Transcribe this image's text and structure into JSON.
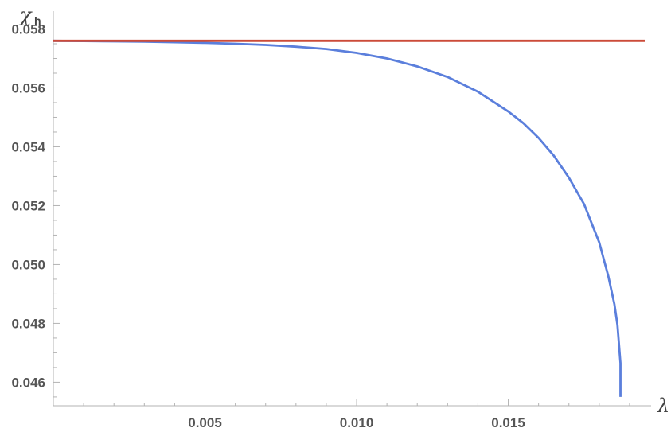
{
  "chart_data": {
    "type": "line",
    "xlabel": "λ",
    "ylabel": "χ",
    "ylabel_subscript": "h",
    "xlim": [
      0,
      0.0195
    ],
    "ylim": [
      0.0452,
      0.0585
    ],
    "x_ticks": [
      0.005,
      0.01,
      0.015
    ],
    "x_tick_labels": [
      "0.005",
      "0.010",
      "0.015"
    ],
    "y_ticks": [
      0.046,
      0.048,
      0.05,
      0.052,
      0.054,
      0.056,
      0.058
    ],
    "y_tick_labels": [
      "0.046",
      "0.048",
      "0.050",
      "0.052",
      "0.054",
      "0.056",
      "0.058"
    ],
    "grid": false,
    "series": [
      {
        "color": "#5b7fdc",
        "x": [
          0,
          0.001,
          0.002,
          0.003,
          0.004,
          0.005,
          0.006,
          0.007,
          0.008,
          0.009,
          0.01,
          0.011,
          0.012,
          0.013,
          0.014,
          0.015,
          0.0155,
          0.016,
          0.0165,
          0.017,
          0.0175,
          0.018,
          0.0183,
          0.0185,
          0.0186,
          0.0187,
          0.0187
        ],
        "y": [
          0.0576,
          0.05759,
          0.05758,
          0.05757,
          0.05755,
          0.05753,
          0.0575,
          0.05746,
          0.0574,
          0.05732,
          0.05719,
          0.057,
          0.05673,
          0.05637,
          0.05587,
          0.0552,
          0.0548,
          0.0543,
          0.0537,
          0.05295,
          0.05205,
          0.05075,
          0.0496,
          0.04865,
          0.04795,
          0.04665,
          0.0455
        ]
      },
      {
        "color": "#cc4b39",
        "x": [
          0,
          0.0195
        ],
        "y": [
          0.0576,
          0.0576
        ]
      }
    ]
  }
}
